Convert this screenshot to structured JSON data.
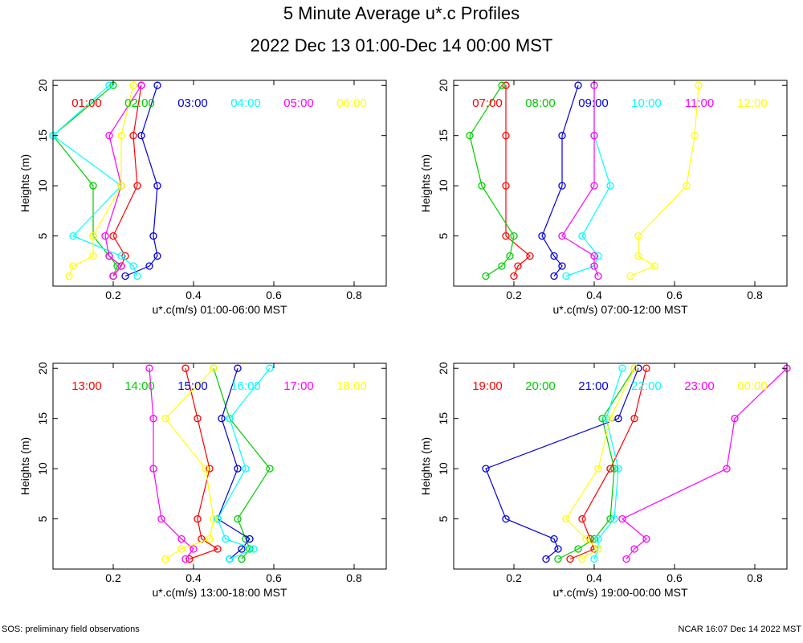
{
  "title": "5 Minute Average u*.c Profiles",
  "subtitle": "2022 Dec 13 01:00-Dec 14 00:00 MST",
  "footer_left": "SOS: preliminary field observations",
  "footer_right": "NCAR 16:07 Dec 14 2022 MST",
  "chart_data": [
    {
      "type": "line",
      "xlabel": "u*.c(m/s) 01:00-06:00 MST",
      "ylabel": "Heights (m)",
      "xlim": [
        0.05,
        0.88
      ],
      "ylim": [
        0,
        20.5
      ],
      "xticks": [
        "0.2",
        "0.4",
        "0.6",
        "0.8"
      ],
      "yticks": [
        "5",
        "10",
        "15",
        "20"
      ],
      "heights": [
        1,
        2,
        3,
        5,
        10,
        15,
        20
      ],
      "series": [
        {
          "name": "01:00",
          "color": "#ff0000",
          "values": [
            0.2,
            0.22,
            0.23,
            0.2,
            0.26,
            0.25,
            0.27
          ]
        },
        {
          "name": "02:00",
          "color": "#00cc00",
          "values": [
            0.2,
            0.21,
            0.19,
            0.15,
            0.15,
            0.05,
            0.2
          ]
        },
        {
          "name": "03:00",
          "color": "#0000dd",
          "values": [
            0.23,
            0.29,
            0.31,
            0.3,
            0.31,
            0.27,
            0.31
          ]
        },
        {
          "name": "04:00",
          "color": "#00ffff",
          "values": [
            0.26,
            0.25,
            0.22,
            0.1,
            0.22,
            0.05,
            0.19
          ]
        },
        {
          "name": "05:00",
          "color": "#ff00ff",
          "values": [
            0.2,
            0.22,
            0.19,
            0.18,
            0.22,
            0.19,
            0.27
          ]
        },
        {
          "name": "06:00",
          "color": "#ffff00",
          "values": [
            0.09,
            0.1,
            0.15,
            0.15,
            0.22,
            0.22,
            0.25
          ]
        }
      ]
    },
    {
      "type": "line",
      "xlabel": "u*.c(m/s) 07:00-12:00 MST",
      "ylabel": "Heights (m)",
      "xlim": [
        0.05,
        0.88
      ],
      "ylim": [
        0,
        20.5
      ],
      "xticks": [
        "0.2",
        "0.4",
        "0.6",
        "0.8"
      ],
      "yticks": [
        "5",
        "10",
        "15",
        "20"
      ],
      "heights": [
        1,
        2,
        3,
        5,
        10,
        15,
        20
      ],
      "series": [
        {
          "name": "07:00",
          "color": "#ff0000",
          "values": [
            0.2,
            0.21,
            0.24,
            0.18,
            0.18,
            0.18,
            0.18
          ]
        },
        {
          "name": "08:00",
          "color": "#00cc00",
          "values": [
            0.13,
            0.17,
            0.19,
            0.2,
            0.12,
            0.09,
            0.17
          ]
        },
        {
          "name": "09:00",
          "color": "#0000dd",
          "values": [
            0.3,
            0.32,
            0.3,
            0.27,
            0.32,
            0.32,
            0.36
          ]
        },
        {
          "name": "10:00",
          "color": "#00ffff",
          "values": [
            0.33,
            0.4,
            0.41,
            0.37,
            0.44,
            0.4,
            0.4
          ]
        },
        {
          "name": "11:00",
          "color": "#ff00ff",
          "values": [
            0.41,
            0.4,
            0.4,
            0.32,
            0.4,
            0.4,
            0.4
          ]
        },
        {
          "name": "12:00",
          "color": "#ffff00",
          "values": [
            0.49,
            0.55,
            0.51,
            0.51,
            0.63,
            0.65,
            0.66
          ]
        }
      ]
    },
    {
      "type": "line",
      "xlabel": "u*.c(m/s) 13:00-18:00 MST",
      "ylabel": "Heights (m)",
      "xlim": [
        0.05,
        0.88
      ],
      "ylim": [
        0,
        20.5
      ],
      "xticks": [
        "0.2",
        "0.4",
        "0.6",
        "0.8"
      ],
      "yticks": [
        "5",
        "10",
        "15",
        "20"
      ],
      "heights": [
        1,
        2,
        3,
        5,
        10,
        15,
        20
      ],
      "series": [
        {
          "name": "13:00",
          "color": "#ff0000",
          "values": [
            0.39,
            0.46,
            0.42,
            0.41,
            0.44,
            0.41,
            0.38
          ]
        },
        {
          "name": "14:00",
          "color": "#00cc00",
          "values": [
            0.52,
            0.54,
            0.53,
            0.51,
            0.59,
            0.49,
            0.45
          ]
        },
        {
          "name": "15:00",
          "color": "#0000dd",
          "values": [
            0.49,
            0.52,
            0.54,
            0.46,
            0.51,
            0.47,
            0.51
          ]
        },
        {
          "name": "16:00",
          "color": "#00ffff",
          "values": [
            0.49,
            0.55,
            0.48,
            0.46,
            0.53,
            0.49,
            0.59
          ]
        },
        {
          "name": "17:00",
          "color": "#ff00ff",
          "values": [
            0.38,
            0.4,
            0.37,
            0.32,
            0.3,
            0.3,
            0.29
          ]
        },
        {
          "name": "18:00",
          "color": "#ffff00",
          "values": [
            0.33,
            0.37,
            0.44,
            0.45,
            0.43,
            0.33,
            0.45
          ]
        }
      ]
    },
    {
      "type": "line",
      "xlabel": "u*.c(m/s) 19:00-00:00 MST",
      "ylabel": "Heights (m)",
      "xlim": [
        0.05,
        0.88
      ],
      "ylim": [
        0,
        20.5
      ],
      "xticks": [
        "0.2",
        "0.4",
        "0.6",
        "0.8"
      ],
      "yticks": [
        "5",
        "10",
        "15",
        "20"
      ],
      "heights": [
        1,
        2,
        3,
        5,
        10,
        15,
        20
      ],
      "series": [
        {
          "name": "19:00",
          "color": "#ff0000",
          "values": [
            0.34,
            0.4,
            0.39,
            0.37,
            0.44,
            0.5,
            0.53
          ]
        },
        {
          "name": "20:00",
          "color": "#00cc00",
          "values": [
            0.31,
            0.36,
            0.4,
            0.44,
            0.45,
            0.42,
            0.5
          ]
        },
        {
          "name": "21:00",
          "color": "#0000dd",
          "values": [
            0.28,
            0.31,
            0.3,
            0.18,
            0.13,
            0.46,
            0.51
          ]
        },
        {
          "name": "22:00",
          "color": "#00ffff",
          "values": [
            0.4,
            0.41,
            0.41,
            0.45,
            0.46,
            0.43,
            0.47
          ]
        },
        {
          "name": "23:00",
          "color": "#ff00ff",
          "values": [
            0.48,
            0.5,
            0.53,
            0.47,
            0.73,
            0.75,
            0.88
          ]
        },
        {
          "name": "00:00",
          "color": "#ffff00",
          "values": [
            0.37,
            0.41,
            0.38,
            0.33,
            0.41,
            0.44,
            0.5
          ]
        }
      ]
    }
  ]
}
